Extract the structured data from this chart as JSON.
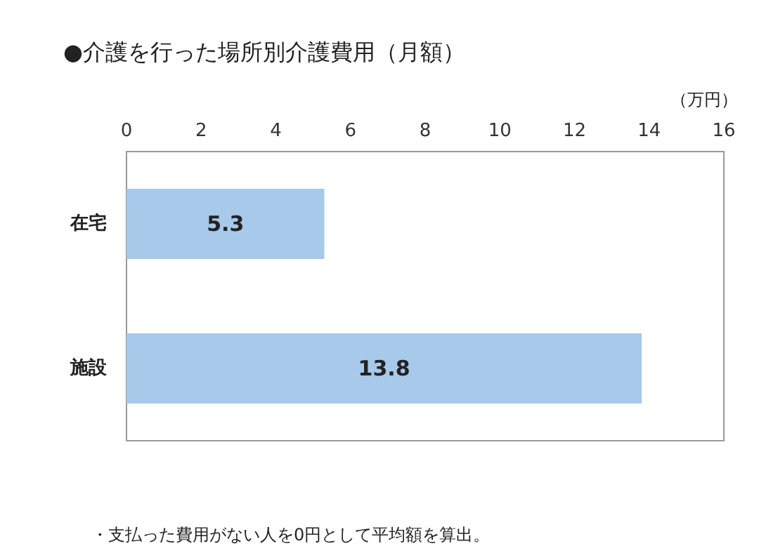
{
  "chart_data": {
    "type": "bar",
    "orientation": "horizontal",
    "title": "●介護を行った場所別介護費用（月額）",
    "xlabel": "（万円）",
    "categories": [
      "在宅",
      "施設"
    ],
    "values": [
      5.3,
      13.8
    ],
    "color": "#a7c9ea",
    "data_labels": true,
    "xlim": [
      0,
      16
    ],
    "xticks": [
      0,
      2,
      4,
      6,
      8,
      10,
      12,
      14,
      16
    ],
    "grid": false,
    "annotations": [
      "・支払った費用がない人を0円として平均額を算出。"
    ]
  }
}
